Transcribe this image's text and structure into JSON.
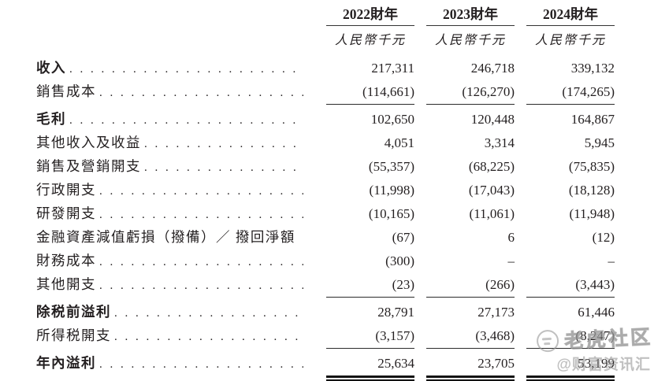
{
  "statement": {
    "columns": [
      {
        "year": "2022財年",
        "unit": "人民幣千元"
      },
      {
        "year": "2023財年",
        "unit": "人民幣千元"
      },
      {
        "year": "2024財年",
        "unit": "人民幣千元"
      }
    ],
    "rows": [
      {
        "label": "收入",
        "values": [
          "217,311",
          "246,718",
          "339,132"
        ]
      },
      {
        "label": "銷售成本",
        "values": [
          "(114,661)",
          "(126,270)",
          "(174,265)"
        ]
      },
      {
        "label": "毛利",
        "values": [
          "102,650",
          "120,448",
          "164,867"
        ]
      },
      {
        "label": "其他收入及收益",
        "values": [
          "4,051",
          "3,314",
          "5,945"
        ]
      },
      {
        "label": "銷售及營銷開支",
        "values": [
          "(55,357)",
          "(68,225)",
          "(75,835)"
        ]
      },
      {
        "label": "行政開支",
        "values": [
          "(11,998)",
          "(17,043)",
          "(18,128)"
        ]
      },
      {
        "label": "研發開支",
        "values": [
          "(10,165)",
          "(11,061)",
          "(11,948)"
        ]
      },
      {
        "label": "金融資產減值虧損（撥備）／ 撥回淨額",
        "values": [
          "(67)",
          "6",
          "(12)"
        ]
      },
      {
        "label": "財務成本",
        "values": [
          "(300)",
          "–",
          "–"
        ]
      },
      {
        "label": "其他開支",
        "values": [
          "(23)",
          "(266)",
          "(3,443)"
        ]
      },
      {
        "label": "除税前溢利",
        "values": [
          "28,791",
          "27,173",
          "61,446"
        ]
      },
      {
        "label": "所得税開支",
        "values": [
          "(3,157)",
          "(3,468)",
          "(8,247)"
        ]
      },
      {
        "label": "年內溢利",
        "values": [
          "25,634",
          "23,705",
          "53,199"
        ]
      }
    ]
  },
  "watermark": {
    "brand": "老虎社区",
    "handle": "@财富资讯汇",
    "logo": "tiger-circle-logo"
  }
}
